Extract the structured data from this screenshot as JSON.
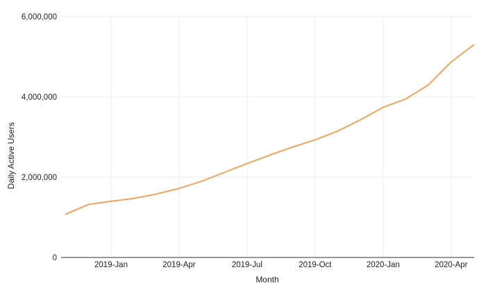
{
  "chart_data": {
    "type": "line",
    "title": "",
    "xlabel": "Month",
    "ylabel": "Daily Active Users",
    "x": [
      "2018-Nov",
      "2018-Dec",
      "2019-Jan",
      "2019-Feb",
      "2019-Mar",
      "2019-Apr",
      "2019-May",
      "2019-Jun",
      "2019-Jul",
      "2019-Aug",
      "2019-Sep",
      "2019-Oct",
      "2019-Nov",
      "2019-Dec",
      "2020-Jan",
      "2020-Feb",
      "2020-Mar",
      "2020-Apr",
      "2020-May"
    ],
    "series": [
      {
        "name": "Daily Active Users",
        "values": [
          1080000,
          1320000,
          1400000,
          1470000,
          1580000,
          1720000,
          1900000,
          2120000,
          2340000,
          2550000,
          2750000,
          2930000,
          3150000,
          3430000,
          3740000,
          3950000,
          4300000,
          4870000,
          5300000
        ]
      }
    ],
    "x_tick_labels": [
      "2019-Jan",
      "2019-Apr",
      "2019-Jul",
      "2019-Oct",
      "2020-Jan",
      "2020-Apr"
    ],
    "y_ticks": [
      0,
      2000000,
      4000000,
      6000000
    ],
    "y_tick_labels": [
      "0",
      "2,000,000",
      "4,000,000",
      "6,000,000"
    ],
    "ylim": [
      0,
      6000000
    ],
    "grid": true,
    "legend_position": "none",
    "colors": {
      "line": "#f0a35c",
      "gridline": "#ededed",
      "axis_line": "#565656",
      "label_text": "#222222",
      "background": "#ffffff"
    }
  }
}
